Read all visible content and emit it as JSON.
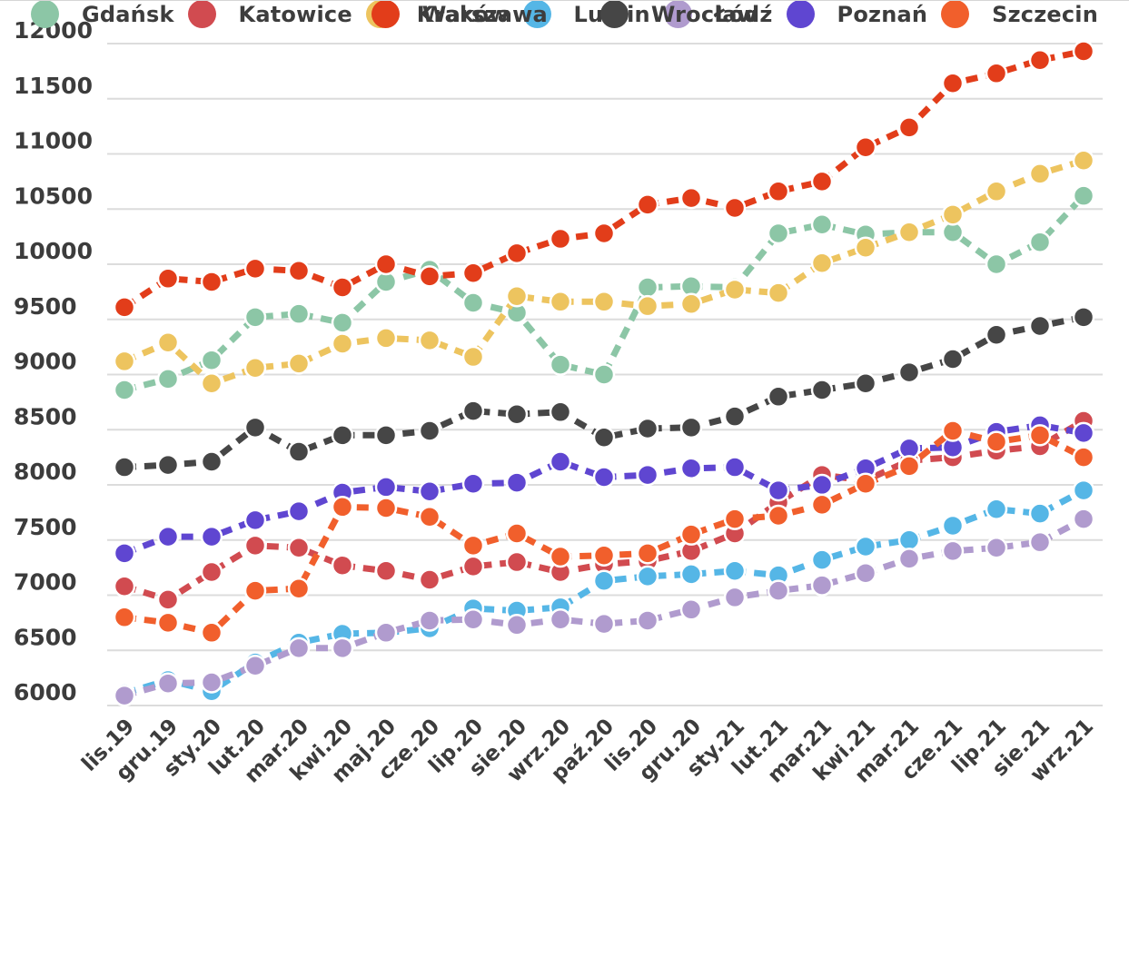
{
  "chart_data": {
    "type": "line",
    "title": "",
    "xlabel": "",
    "ylabel": "",
    "ylim": [
      6000,
      12000
    ],
    "grid": "horizontal",
    "legend_position": "bottom",
    "y_ticks": [
      12000,
      11500,
      11000,
      10500,
      10000,
      9500,
      9000,
      8500,
      8000,
      7500,
      7000,
      6500,
      6000
    ],
    "categories": [
      "lis.19",
      "gru.19",
      "sty.20",
      "lut.20",
      "mar.20",
      "kwi.20",
      "maj.20",
      "cze.20",
      "lip.20",
      "sie.20",
      "wrz.20",
      "paź.20",
      "lis.20",
      "gru.20",
      "sty.21",
      "lut.21",
      "mar.21",
      "kwi.21",
      "mar.21",
      "cze.21",
      "lip.21",
      "sie.21",
      "wrz.21"
    ],
    "series": [
      {
        "name": "Gdańsk",
        "color": "#8cc6a6",
        "values": [
          8860,
          8960,
          9130,
          9520,
          9550,
          9470,
          9840,
          9950,
          9650,
          9560,
          9090,
          9000,
          9790,
          9800,
          9790,
          10280,
          10360,
          10270,
          10290,
          10290,
          10000,
          10200,
          10620
        ]
      },
      {
        "name": "Katowice",
        "color": "#d14b50",
        "values": [
          7080,
          6960,
          7210,
          7450,
          7430,
          7270,
          7220,
          7140,
          7260,
          7300,
          7210,
          7280,
          7310,
          7400,
          7560,
          7840,
          8090,
          8040,
          8220,
          8250,
          8310,
          8350,
          8580
        ]
      },
      {
        "name": "Kraków",
        "color": "#edc45f",
        "values": [
          9120,
          9290,
          8920,
          9060,
          9100,
          9280,
          9330,
          9310,
          9160,
          9710,
          9660,
          9660,
          9620,
          9640,
          9770,
          9740,
          10010,
          10150,
          10290,
          10450,
          10660,
          10820,
          10940
        ]
      },
      {
        "name": "Lublin",
        "color": "#55b6e6",
        "values": [
          6110,
          6230,
          6130,
          6390,
          6570,
          6650,
          6660,
          6700,
          6880,
          6860,
          6890,
          7130,
          7170,
          7190,
          7220,
          7180,
          7320,
          7440,
          7500,
          7630,
          7780,
          7740,
          7950
        ]
      },
      {
        "name": "Łódź",
        "color": "#b09bce",
        "values": [
          6090,
          6200,
          6210,
          6360,
          6520,
          6520,
          6660,
          6770,
          6780,
          6730,
          6780,
          6740,
          6770,
          6870,
          6980,
          7040,
          7090,
          7200,
          7330,
          7400,
          7430,
          7480,
          7690
        ]
      },
      {
        "name": "Poznań",
        "color": "#5f46d1",
        "values": [
          7380,
          7530,
          7530,
          7680,
          7760,
          7930,
          7980,
          7940,
          8010,
          8020,
          8210,
          8070,
          8090,
          8150,
          8160,
          7950,
          8000,
          8150,
          8330,
          8340,
          8480,
          8540,
          8470
        ]
      },
      {
        "name": "Szczecin",
        "color": "#f15f2c",
        "values": [
          6800,
          6750,
          6660,
          7040,
          7060,
          7800,
          7790,
          7710,
          7450,
          7560,
          7350,
          7360,
          7380,
          7550,
          7690,
          7720,
          7820,
          8010,
          8170,
          8490,
          8390,
          8450,
          8250
        ]
      },
      {
        "name": "Warszawa",
        "color": "#e23d1a",
        "values": [
          9610,
          9870,
          9840,
          9960,
          9940,
          9790,
          10000,
          9890,
          9920,
          10100,
          10230,
          10280,
          10540,
          10600,
          10510,
          10660,
          10750,
          11060,
          11240,
          11640,
          11730,
          11850,
          11930
        ]
      },
      {
        "name": "Wrocław",
        "color": "#464646",
        "values": [
          8160,
          8180,
          8210,
          8520,
          8300,
          8450,
          8450,
          8490,
          8670,
          8640,
          8660,
          8430,
          8510,
          8520,
          8620,
          8800,
          8860,
          8920,
          9020,
          9140,
          9360,
          9440,
          9520
        ]
      }
    ],
    "legend_rows": [
      [
        "Gdańsk",
        "Katowice",
        "Kraków",
        "Lublin",
        "Łódź",
        "Poznań",
        "Szczecin"
      ],
      [
        "Warszawa",
        "Wrocław"
      ]
    ]
  },
  "style": {
    "grid_color": "#dcdcdc",
    "tick_label_color": "#3c3c3c",
    "background": "#ffffff"
  }
}
